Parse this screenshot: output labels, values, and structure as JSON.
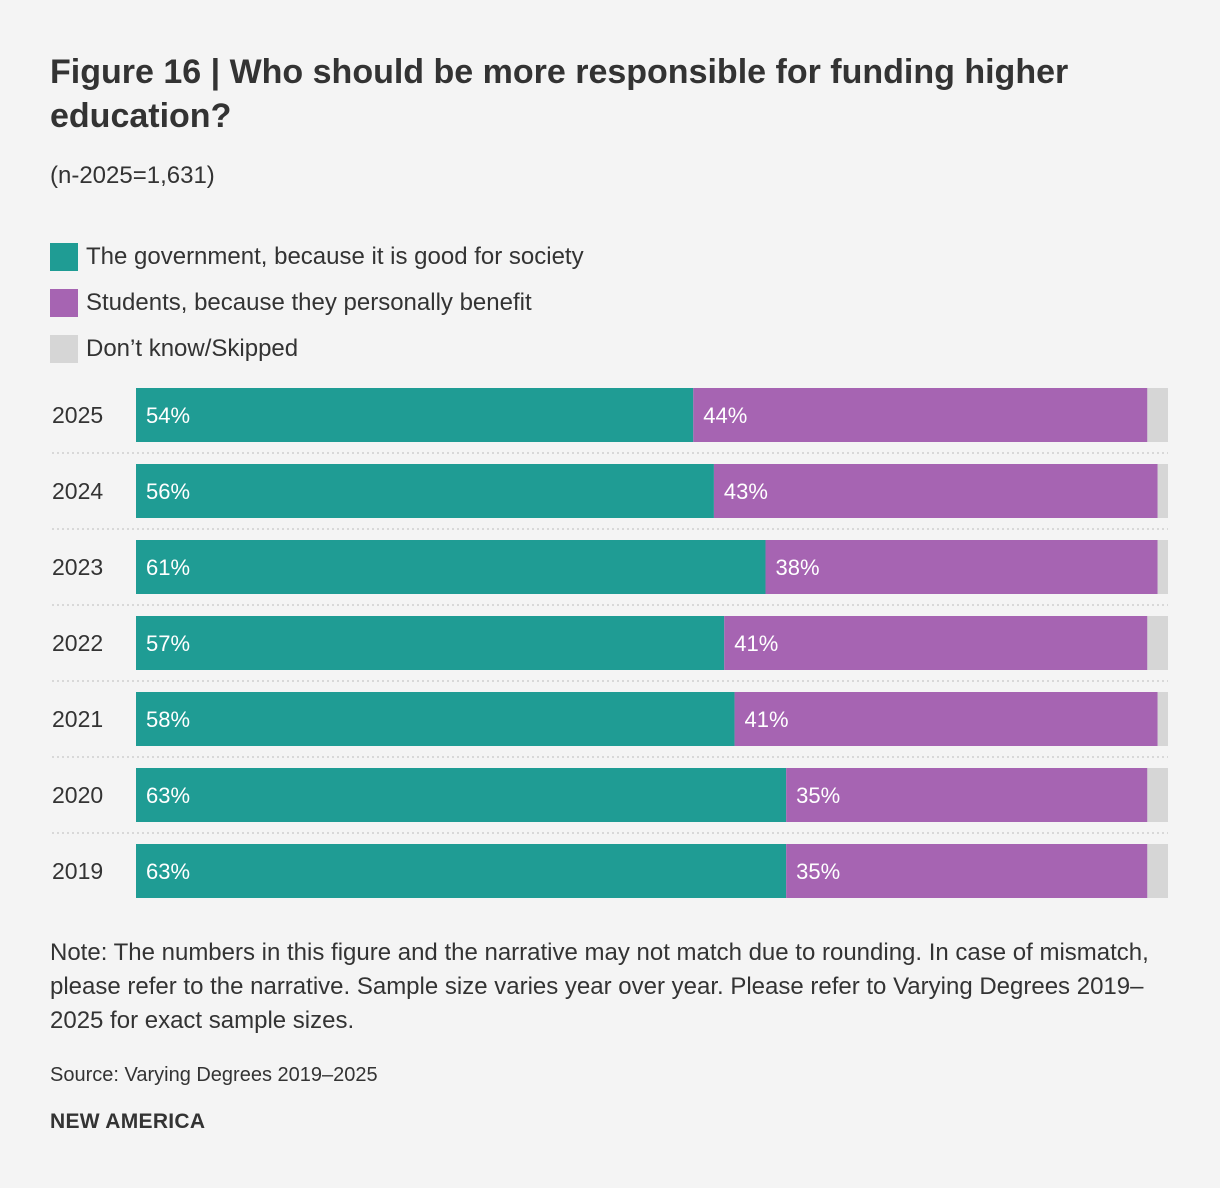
{
  "title": "Figure 16 | Who should be more responsible for funding higher education?",
  "subtitle": "(n-2025=1,631)",
  "note": "Note: The numbers in this figure and the narrative may not match due to rounding. In case of mismatch, please refer to the narrative. Sample size varies year over year. Please refer to Varying Degrees 2019–2025 for exact sample sizes.",
  "source": "Source: Varying Degrees 2019–2025",
  "brand": "NEW AMERICA",
  "chart_data": {
    "type": "bar",
    "orientation": "horizontal",
    "stacked": true,
    "title": "Figure 16 | Who should be more responsible for funding higher education?",
    "categories": [
      "2025",
      "2024",
      "2023",
      "2022",
      "2021",
      "2020",
      "2019"
    ],
    "series": [
      {
        "name": "The government, because it is good for society",
        "color": "#1f9c94",
        "values": [
          54,
          56,
          61,
          57,
          58,
          63,
          63
        ]
      },
      {
        "name": "Students, because they personally benefit",
        "color": "#a664b2",
        "values": [
          44,
          43,
          38,
          41,
          41,
          35,
          35
        ]
      },
      {
        "name": "Don’t know/Skipped",
        "color": "#d6d6d6",
        "values": [
          2,
          1,
          1,
          2,
          1,
          2,
          2
        ]
      }
    ],
    "xlim": [
      0,
      100
    ],
    "value_suffix": "%",
    "label_series": [
      0,
      1
    ],
    "gridlines": false,
    "legend_position": "top-left"
  }
}
